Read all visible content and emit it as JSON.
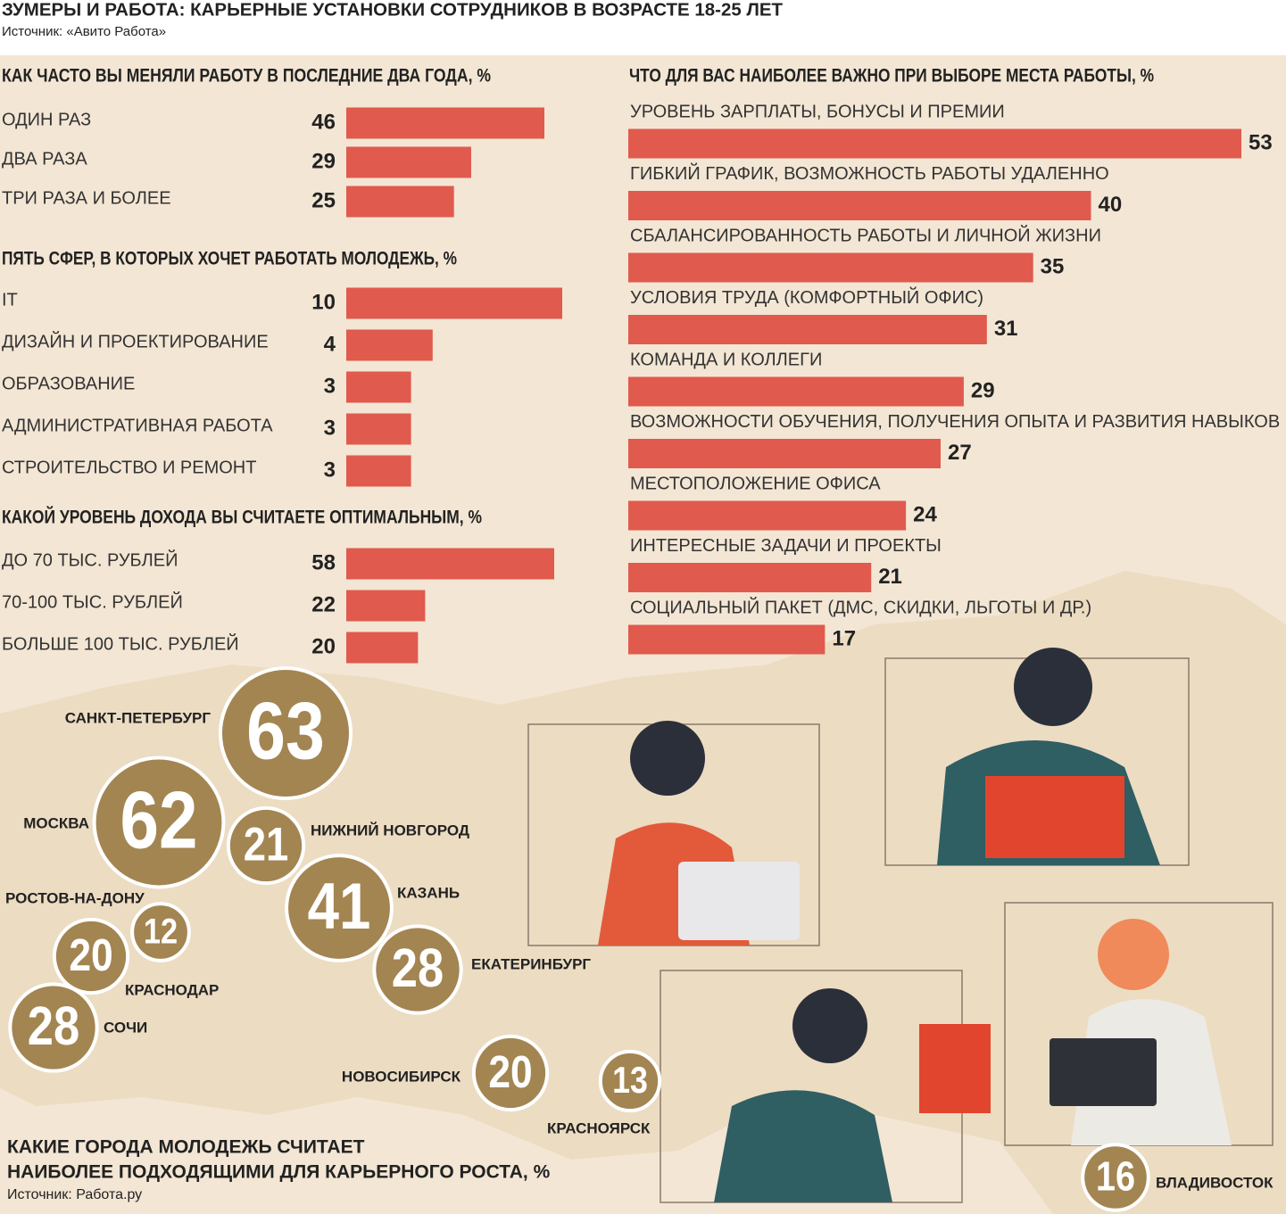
{
  "title": "ЗУМЕРЫ И РАБОТА: КАРЬЕРНЫЕ УСТАНОВКИ СОТРУДНИКОВ В ВОЗРАСТЕ 18-25 ЛЕТ",
  "source": "Источник: «Авито Работа»",
  "chart_data": [
    {
      "type": "bar",
      "title": "КАК ЧАСТО ВЫ МЕНЯЛИ РАБОТУ В ПОСЛЕДНИЕ ДВА ГОДА, %",
      "color": "#e05a4e",
      "categories": [
        "ОДИН РАЗ",
        "ДВА РАЗА",
        "ТРИ РАЗА И БОЛЕЕ"
      ],
      "values": [
        46,
        29,
        25
      ]
    },
    {
      "type": "bar",
      "title": "ПЯТЬ СФЕР, В КОТОРЫХ ХОЧЕТ РАБОТАТЬ МОЛОДЕЖЬ, %",
      "color": "#e05a4e",
      "categories": [
        "IT",
        "ДИЗАЙН И ПРОЕКТИРОВАНИЕ",
        "ОБРАЗОВАНИЕ",
        "АДМИНИСТРАТИВНАЯ РАБОТА",
        "СТРОИТЕЛЬСТВО И РЕМОНТ"
      ],
      "values": [
        10,
        4,
        3,
        3,
        3
      ]
    },
    {
      "type": "bar",
      "title": "КАКОЙ УРОВЕНЬ ДОХОДА ВЫ СЧИТАЕТЕ ОПТИМАЛЬНЫМ, %",
      "color": "#e05a4e",
      "categories": [
        "ДО 70 ТЫС. РУБЛЕЙ",
        "70-100 ТЫС. РУБЛЕЙ",
        "БОЛЬШЕ 100 ТЫС. РУБЛЕЙ"
      ],
      "values": [
        58,
        22,
        20
      ]
    },
    {
      "type": "bar",
      "title": "ЧТО ДЛЯ ВАС НАИБОЛЕЕ ВАЖНО ПРИ ВЫБОРЕ МЕСТА РАБОТЫ, %",
      "color": "#e05a4e",
      "categories": [
        "УРОВЕНЬ ЗАРПЛАТЫ, БОНУСЫ И ПРЕМИИ",
        "ГИБКИЙ ГРАФИК, ВОЗМОЖНОСТЬ РАБОТЫ УДАЛЕННО",
        "СБАЛАНСИРОВАННОСТЬ РАБОТЫ И ЛИЧНОЙ ЖИЗНИ",
        "УСЛОВИЯ ТРУДА (КОМФОРТНЫЙ ОФИС)",
        "КОМАНДА И КОЛЛЕГИ",
        "ВОЗМОЖНОСТИ ОБУЧЕНИЯ, ПОЛУЧЕНИЯ ОПЫТА И РАЗВИТИЯ НАВЫКОВ",
        "МЕСТОПОЛОЖЕНИЕ ОФИСА",
        "ИНТЕРЕСНЫЕ ЗАДАЧИ И ПРОЕКТЫ",
        "СОЦИАЛЬНЫЙ ПАКЕТ (ДМС, СКИДКИ, ЛЬГОТЫ И ДР.)"
      ],
      "values": [
        53,
        40,
        35,
        31,
        29,
        27,
        24,
        21,
        17
      ]
    },
    {
      "type": "bubble",
      "title": [
        "КАКИЕ ГОРОДА МОЛОДЕЖЬ СЧИТАЕТ",
        "НАИБОЛЕЕ ПОДХОДЯЩИМИ ДЛЯ КАРЬЕРНОГО РОСТА, %"
      ],
      "source": "Источник: Работа.ру",
      "color": "#a38552",
      "categories": [
        "САНКТ-ПЕТЕРБУРГ",
        "МОСКВА",
        "НИЖНИЙ НОВГОРОД",
        "КАЗАНЬ",
        "ЕКАТЕРИНБУРГ",
        "РОСТОВ-НА-ДОНУ",
        "КРАСНОДАР",
        "СОЧИ",
        "НОВОСИБИРСК",
        "КРАСНОЯРСК",
        "ВЛАДИВОСТОК"
      ],
      "values": [
        63,
        62,
        21,
        41,
        28,
        12,
        20,
        28,
        20,
        13,
        16
      ]
    }
  ]
}
